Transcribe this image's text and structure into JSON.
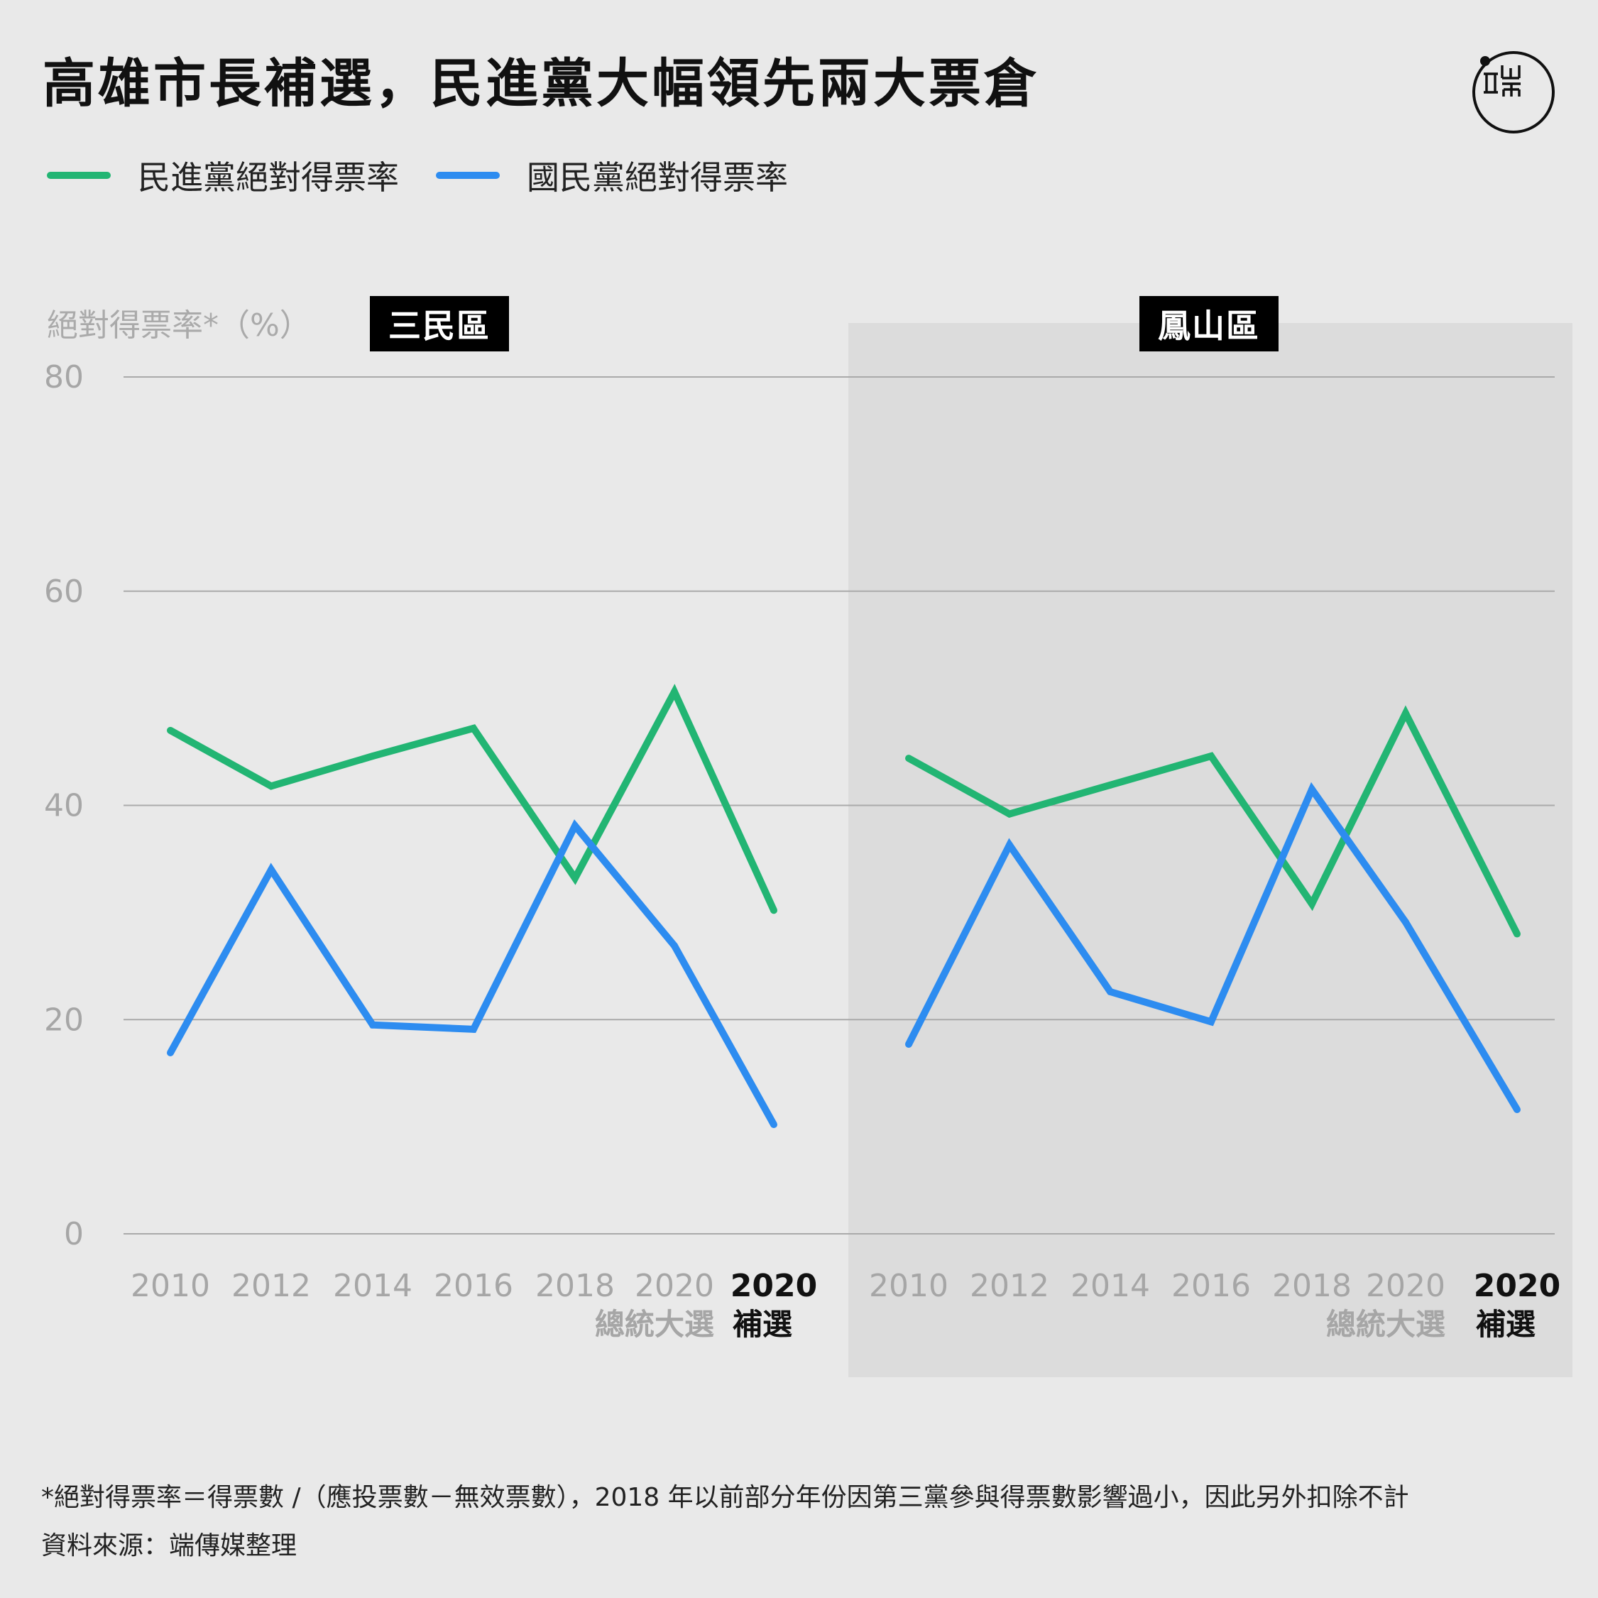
{
  "title": "高雄市長補選，民進黨大幅領先兩大票倉",
  "legend": [
    {
      "label": "民進黨絕對得票率",
      "color": "#22b573"
    },
    {
      "label": "國民黨絕對得票率",
      "color": "#2d8cf0"
    }
  ],
  "colors": {
    "background": "#e9e9e9",
    "shaded_panel": "#dcdcdc",
    "grid": "#aaaaaa",
    "tick_text": "#a6a6a6",
    "highlight_text": "#111111"
  },
  "logo_icon": "initium-media-logo",
  "chart_data": {
    "type": "line",
    "ylabel": "絕對得票率*（%）",
    "ylim": [
      0,
      80
    ],
    "yticks": [
      "0",
      "20",
      "40",
      "60",
      "80"
    ],
    "grid": "horizontal",
    "legend_position": "top-left",
    "panels": [
      {
        "name": "三民區",
        "shaded": false,
        "x_labels": [
          {
            "year": "2010",
            "sub": "",
            "bold": false
          },
          {
            "year": "2012",
            "sub": "",
            "bold": false
          },
          {
            "year": "2014",
            "sub": "",
            "bold": false
          },
          {
            "year": "2016",
            "sub": "",
            "bold": false
          },
          {
            "year": "2018",
            "sub": "",
            "bold": false
          },
          {
            "year": "2020",
            "sub": "總統大選",
            "bold": false
          },
          {
            "year": "2020",
            "sub": "補選",
            "bold": true
          }
        ],
        "series": [
          {
            "name": "民進黨絕對得票率",
            "color": "#22b573",
            "values": [
              47.0,
              41.8,
              44.6,
              47.2,
              33.2,
              50.6,
              30.2
            ]
          },
          {
            "name": "國民黨絕對得票率",
            "color": "#2d8cf0",
            "values": [
              16.9,
              34.0,
              19.5,
              19.1,
              38.1,
              26.9,
              10.2
            ]
          }
        ]
      },
      {
        "name": "鳳山區",
        "shaded": true,
        "x_labels": [
          {
            "year": "2010",
            "sub": "",
            "bold": false
          },
          {
            "year": "2012",
            "sub": "",
            "bold": false
          },
          {
            "year": "2014",
            "sub": "",
            "bold": false
          },
          {
            "year": "2016",
            "sub": "",
            "bold": false
          },
          {
            "year": "2018",
            "sub": "",
            "bold": false
          },
          {
            "year": "2020",
            "sub": "總統大選",
            "bold": false
          },
          {
            "year": "2020",
            "sub": "補選",
            "bold": true
          }
        ],
        "series": [
          {
            "name": "民進黨絕對得票率",
            "color": "#22b573",
            "values": [
              44.4,
              39.2,
              41.9,
              44.6,
              30.8,
              48.6,
              28.0
            ]
          },
          {
            "name": "國民黨絕對得票率",
            "color": "#2d8cf0",
            "values": [
              17.7,
              36.3,
              22.6,
              19.8,
              41.5,
              29.1,
              11.6
            ]
          }
        ]
      }
    ]
  },
  "footnotes": [
    "*絕對得票率＝得票數 /（應投票數－無效票數），2018 年以前部分年份因第三黨參與得票數影響過小，因此另外扣除不計",
    "資料來源：端傳媒整理"
  ]
}
